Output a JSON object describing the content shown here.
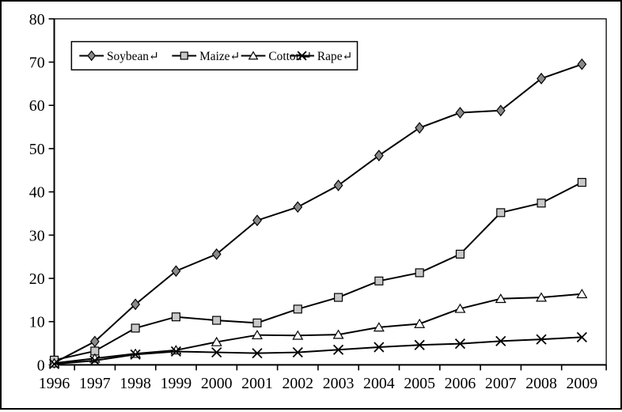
{
  "figure": {
    "background": "#ffffff",
    "border_color": "#000000",
    "line_color": "#000000",
    "text_color": "#000000"
  },
  "chart_data": {
    "type": "line",
    "title": "",
    "xlabel": "",
    "ylabel": "",
    "categories": [
      "1996",
      "1997",
      "1998",
      "1999",
      "2000",
      "2001",
      "2002",
      "2003",
      "2004",
      "2005",
      "2006",
      "2007",
      "2008",
      "2009"
    ],
    "ylim": [
      0,
      80
    ],
    "yticks": [
      0,
      10,
      20,
      30,
      40,
      50,
      60,
      70,
      80
    ],
    "grid": false,
    "legend_position": "top-left-inside",
    "legend_border": true,
    "series": [
      {
        "name": "Soybean↵",
        "marker": "diamond",
        "marker_fill": "#8a8a8a",
        "line_color": "#000000",
        "values": [
          0.5,
          5.4,
          14.0,
          21.7,
          25.6,
          33.4,
          36.5,
          41.5,
          48.4,
          54.8,
          58.3,
          58.8,
          66.2,
          69.5
        ]
      },
      {
        "name": "Maize↵",
        "marker": "square",
        "marker_fill": "#c8c8c8",
        "line_color": "#000000",
        "values": [
          1.1,
          3.2,
          8.5,
          11.1,
          10.3,
          9.7,
          12.9,
          15.6,
          19.4,
          21.3,
          25.6,
          35.2,
          37.4,
          42.2
        ]
      },
      {
        "name": "Cotton↵",
        "marker": "triangle-up",
        "marker_fill": "#ffffff",
        "line_color": "#000000",
        "values": [
          0.4,
          1.5,
          2.6,
          3.4,
          5.3,
          6.9,
          6.8,
          7.0,
          8.7,
          9.5,
          13.0,
          15.3,
          15.6,
          16.4
        ]
      },
      {
        "name": "Rape↵",
        "marker": "x",
        "marker_fill": "none",
        "line_color": "#000000",
        "values": [
          0.2,
          1.0,
          2.4,
          3.1,
          2.9,
          2.7,
          2.9,
          3.5,
          4.1,
          4.6,
          4.9,
          5.5,
          5.9,
          6.4
        ]
      }
    ]
  }
}
